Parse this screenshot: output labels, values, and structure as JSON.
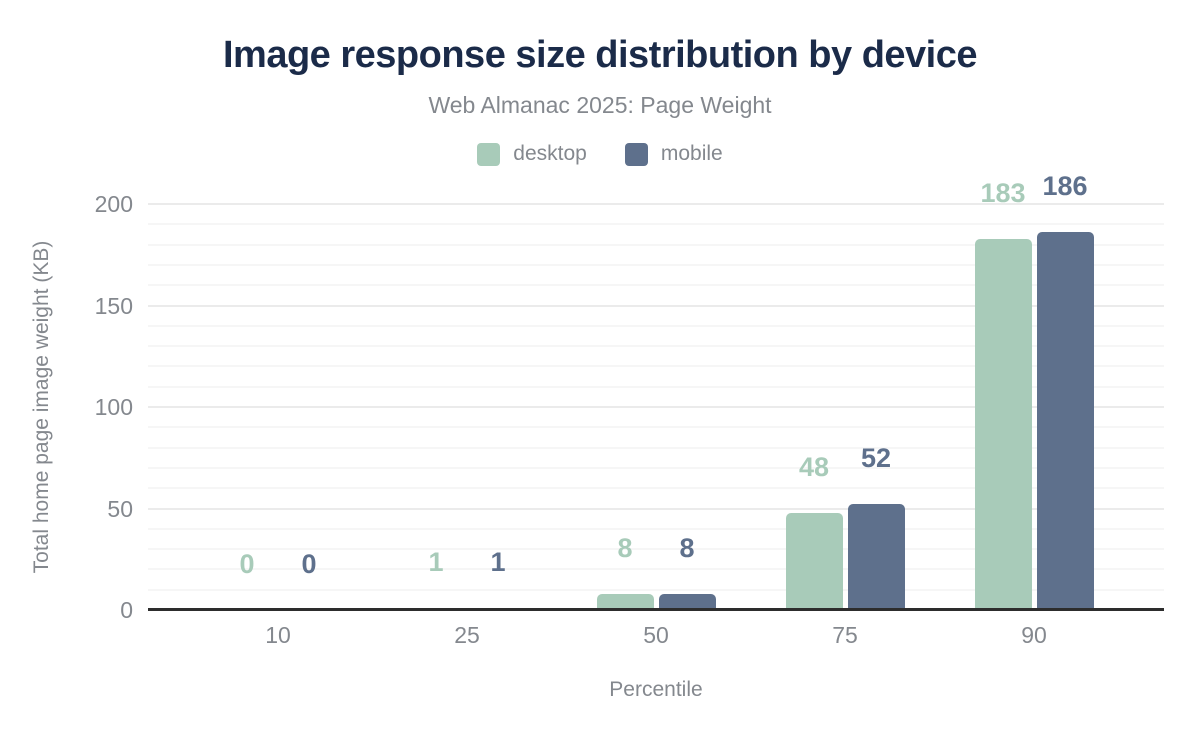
{
  "chart_data": {
    "type": "bar",
    "title": "Image response size distribution by device",
    "subtitle": "Web Almanac 2025: Page Weight",
    "xlabel": "Percentile",
    "ylabel": "Total home page image weight (KB)",
    "categories": [
      "10",
      "25",
      "50",
      "75",
      "90"
    ],
    "series": [
      {
        "name": "desktop",
        "color": "#a8cbb9",
        "values": [
          0,
          1,
          8,
          48,
          183
        ]
      },
      {
        "name": "mobile",
        "color": "#5e708c",
        "values": [
          0,
          1,
          8,
          52,
          186
        ]
      }
    ],
    "ylim": [
      0,
      200
    ],
    "yticks": [
      0,
      50,
      100,
      150,
      200
    ],
    "minor_grid_step": 10,
    "grid": "on",
    "legend_position": "top",
    "value_labels": "on"
  },
  "colors": {
    "title_text": "#1b2b49",
    "axis_text": "#84888e",
    "grid_major": "#ebebeb",
    "grid_minor": "#f6f6f6",
    "baseline": "#2d2d2d",
    "background": "#ffffff"
  }
}
